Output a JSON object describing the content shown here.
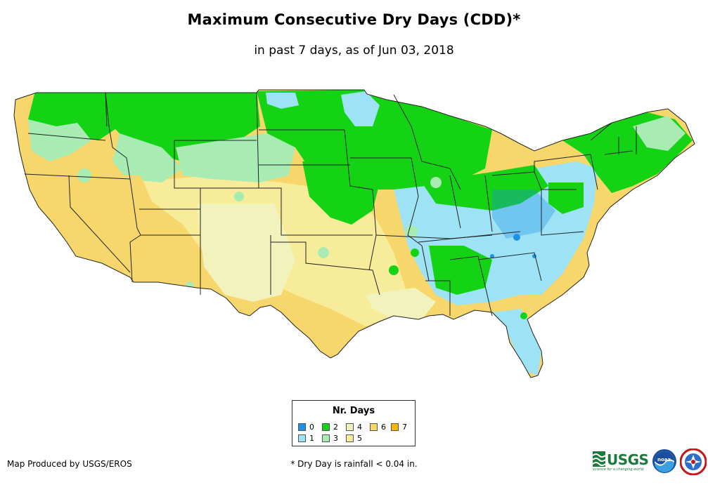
{
  "title": "Maximum Consecutive Dry Days (CDD)*",
  "subtitle": "in past 7 days, as of Jun 03, 2018",
  "legend": {
    "title": "Nr. Days",
    "items": [
      {
        "label": "0",
        "color": "#1e90e6"
      },
      {
        "label": "1",
        "color": "#9ee3f5"
      },
      {
        "label": "2",
        "color": "#14d314"
      },
      {
        "label": "3",
        "color": "#a8ecb4"
      },
      {
        "label": "4",
        "color": "#f2f2bc"
      },
      {
        "label": "5",
        "color": "#f7ec9a"
      },
      {
        "label": "6",
        "color": "#f7d76b"
      },
      {
        "label": "7",
        "color": "#f5b800"
      }
    ]
  },
  "credit": "Map Produced by USGS/EROS",
  "footnote": "* Dry Day is rainfall < 0.04 in.",
  "logos": {
    "usgs": "USGS",
    "usgs_tagline": "science for a changing world",
    "noaa": "noaa"
  },
  "colors": {
    "state_border": "#222222",
    "background": "#ffffff"
  }
}
